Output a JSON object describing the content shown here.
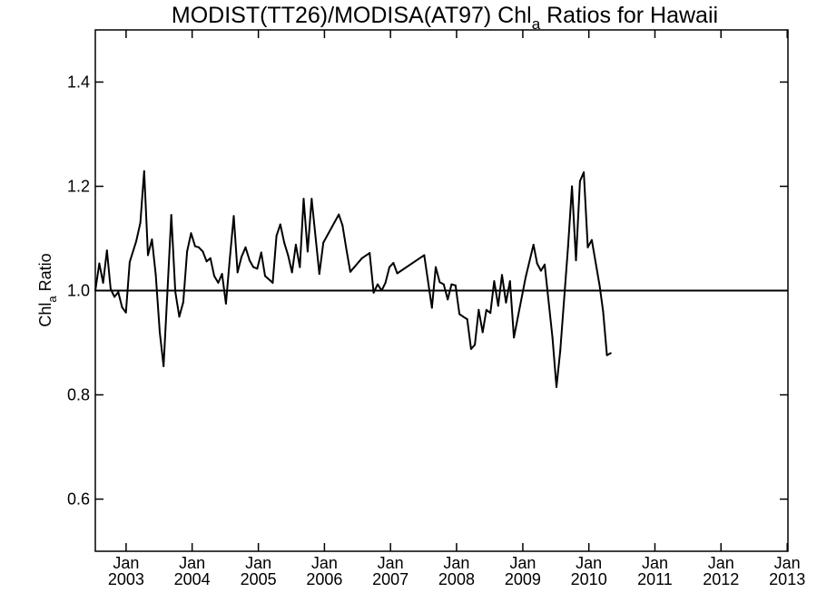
{
  "chart_data": {
    "type": "line",
    "title": {
      "main": "MODIST(TT26)/MODISA(AT97)  Chl",
      "sub": "a",
      "rest": " Ratios for Hawaii"
    },
    "ylabel": {
      "main": "Chl",
      "sub": "a",
      "rest": " Ratio"
    },
    "xlabel": "",
    "x_range": [
      "2002-07-15",
      "2013-01-05"
    ],
    "ylim": [
      0.5,
      1.5
    ],
    "y_ticks": [
      0.6,
      0.8,
      1.0,
      1.2,
      1.4
    ],
    "y_tick_labels": [
      "0.6",
      "0.8",
      "1.0",
      "1.2",
      "1.4"
    ],
    "x_ticks": [
      {
        "date": "2003-01-01",
        "month": "Jan",
        "year": "2003"
      },
      {
        "date": "2004-01-01",
        "month": "Jan",
        "year": "2004"
      },
      {
        "date": "2005-01-01",
        "month": "Jan",
        "year": "2005"
      },
      {
        "date": "2006-01-01",
        "month": "Jan",
        "year": "2006"
      },
      {
        "date": "2007-01-01",
        "month": "Jan",
        "year": "2007"
      },
      {
        "date": "2008-01-01",
        "month": "Jan",
        "year": "2008"
      },
      {
        "date": "2009-01-01",
        "month": "Jan",
        "year": "2009"
      },
      {
        "date": "2010-01-01",
        "month": "Jan",
        "year": "2010"
      },
      {
        "date": "2011-01-01",
        "month": "Jan",
        "year": "2011"
      },
      {
        "date": "2012-01-01",
        "month": "Jan",
        "year": "2012"
      },
      {
        "date": "2013-01-01",
        "month": "Jan",
        "year": "2013"
      }
    ],
    "reference_line": 1.0,
    "grid": false,
    "series": [
      {
        "points": [
          [
            "2002-07-15",
            1.0
          ],
          [
            "2002-08-06",
            1.052
          ],
          [
            "2002-08-27",
            1.015
          ],
          [
            "2002-09-17",
            1.077
          ],
          [
            "2002-10-08",
            1.003
          ],
          [
            "2002-10-29",
            0.988
          ],
          [
            "2002-11-19",
            0.997
          ],
          [
            "2002-12-10",
            0.968
          ],
          [
            "2002-12-31",
            0.958
          ],
          [
            "2003-01-21",
            1.055
          ],
          [
            "2003-02-26",
            1.095
          ],
          [
            "2003-03-21",
            1.13
          ],
          [
            "2003-04-11",
            1.229
          ],
          [
            "2003-05-02",
            1.068
          ],
          [
            "2003-05-24",
            1.098
          ],
          [
            "2003-06-14",
            1.03
          ],
          [
            "2003-07-06",
            0.92
          ],
          [
            "2003-07-27",
            0.855
          ],
          [
            "2003-08-18",
            1.0
          ],
          [
            "2003-09-08",
            1.145
          ],
          [
            "2003-09-30",
            0.998
          ],
          [
            "2003-10-22",
            0.95
          ],
          [
            "2003-11-13",
            0.978
          ],
          [
            "2003-12-04",
            1.075
          ],
          [
            "2003-12-26",
            1.11
          ],
          [
            "2004-01-17",
            1.085
          ],
          [
            "2004-02-07",
            1.083
          ],
          [
            "2004-02-29",
            1.075
          ],
          [
            "2004-03-21",
            1.056
          ],
          [
            "2004-04-11",
            1.062
          ],
          [
            "2004-05-02",
            1.028
          ],
          [
            "2004-05-24",
            1.015
          ],
          [
            "2004-06-14",
            1.032
          ],
          [
            "2004-07-06",
            0.975
          ],
          [
            "2004-07-27",
            1.06
          ],
          [
            "2004-08-18",
            1.143
          ],
          [
            "2004-09-08",
            1.035
          ],
          [
            "2004-09-30",
            1.065
          ],
          [
            "2004-10-22",
            1.083
          ],
          [
            "2004-11-13",
            1.058
          ],
          [
            "2004-12-04",
            1.045
          ],
          [
            "2004-12-26",
            1.042
          ],
          [
            "2005-01-17",
            1.073
          ],
          [
            "2005-02-07",
            1.028
          ],
          [
            "2005-03-21",
            1.015
          ],
          [
            "2005-04-11",
            1.105
          ],
          [
            "2005-05-02",
            1.127
          ],
          [
            "2005-05-24",
            1.092
          ],
          [
            "2005-06-14",
            1.068
          ],
          [
            "2005-07-06",
            1.035
          ],
          [
            "2005-07-27",
            1.088
          ],
          [
            "2005-08-18",
            1.045
          ],
          [
            "2005-09-08",
            1.176
          ],
          [
            "2005-09-30",
            1.075
          ],
          [
            "2005-10-22",
            1.176
          ],
          [
            "2005-12-04",
            1.032
          ],
          [
            "2005-12-26",
            1.092
          ],
          [
            "2006-03-21",
            1.146
          ],
          [
            "2006-04-11",
            1.125
          ],
          [
            "2006-05-02",
            1.08
          ],
          [
            "2006-05-24",
            1.036
          ],
          [
            "2006-07-27",
            1.062
          ],
          [
            "2006-09-08",
            1.072
          ],
          [
            "2006-09-30",
            0.996
          ],
          [
            "2006-10-22",
            1.012
          ],
          [
            "2006-11-13",
            1.0
          ],
          [
            "2006-12-04",
            1.015
          ],
          [
            "2006-12-26",
            1.045
          ],
          [
            "2007-01-17",
            1.053
          ],
          [
            "2007-02-07",
            1.033
          ],
          [
            "2007-07-06",
            1.068
          ],
          [
            "2007-08-18",
            0.967
          ],
          [
            "2007-09-08",
            1.045
          ],
          [
            "2007-09-30",
            1.016
          ],
          [
            "2007-10-22",
            1.012
          ],
          [
            "2007-11-13",
            0.983
          ],
          [
            "2007-12-04",
            1.012
          ],
          [
            "2007-12-26",
            1.01
          ],
          [
            "2008-01-17",
            0.955
          ],
          [
            "2008-02-07",
            0.95
          ],
          [
            "2008-02-29",
            0.945
          ],
          [
            "2008-03-21",
            0.888
          ],
          [
            "2008-04-11",
            0.896
          ],
          [
            "2008-05-02",
            0.963
          ],
          [
            "2008-05-24",
            0.92
          ],
          [
            "2008-06-14",
            0.963
          ],
          [
            "2008-07-06",
            0.957
          ],
          [
            "2008-07-27",
            1.018
          ],
          [
            "2008-08-18",
            0.971
          ],
          [
            "2008-09-08",
            1.03
          ],
          [
            "2008-09-30",
            0.977
          ],
          [
            "2008-10-22",
            1.018
          ],
          [
            "2008-11-13",
            0.91
          ],
          [
            "2009-01-17",
            1.026
          ],
          [
            "2009-02-29",
            1.088
          ],
          [
            "2009-03-21",
            1.052
          ],
          [
            "2009-04-11",
            1.038
          ],
          [
            "2009-05-02",
            1.05
          ],
          [
            "2009-06-14",
            0.91
          ],
          [
            "2009-07-06",
            0.815
          ],
          [
            "2009-07-27",
            0.885
          ],
          [
            "2009-09-08",
            1.085
          ],
          [
            "2009-09-30",
            1.2
          ],
          [
            "2009-10-22",
            1.058
          ],
          [
            "2009-11-13",
            1.21
          ],
          [
            "2009-12-04",
            1.227
          ],
          [
            "2009-12-26",
            1.083
          ],
          [
            "2010-01-17",
            1.097
          ],
          [
            "2010-02-29",
            1.01
          ],
          [
            "2010-03-21",
            0.96
          ],
          [
            "2010-04-11",
            0.876
          ],
          [
            "2010-05-02",
            0.88
          ]
        ]
      }
    ]
  }
}
